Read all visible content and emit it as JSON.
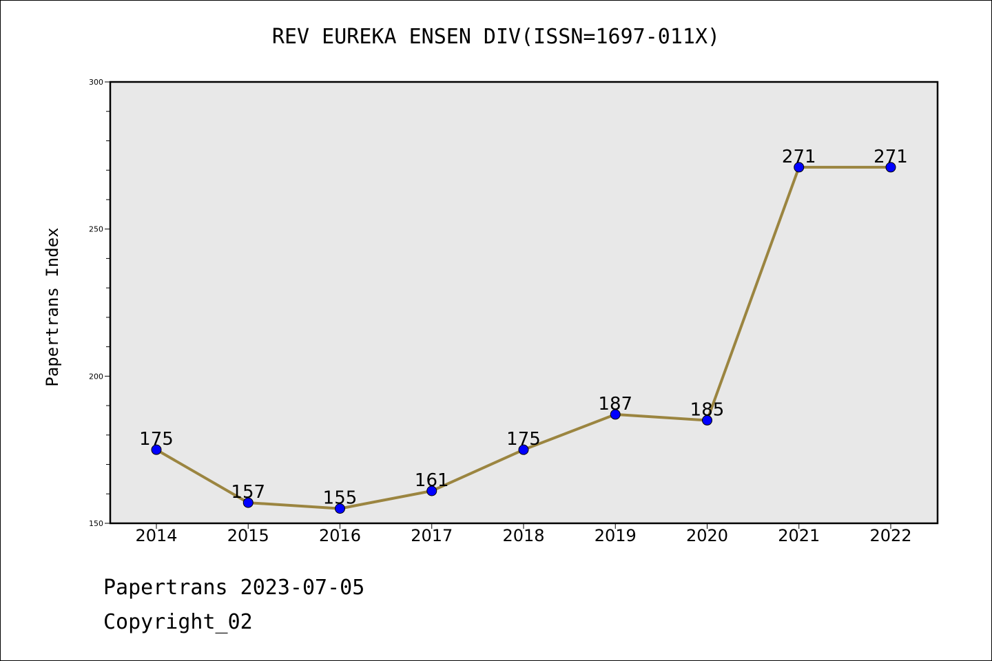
{
  "chart_data": {
    "type": "line",
    "title": "REV EUREKA ENSEN DIV(ISSN=1697-011X)",
    "ylabel": "Papertrans Index",
    "xlabel": "",
    "x": [
      "2014",
      "2015",
      "2016",
      "2017",
      "2018",
      "2019",
      "2020",
      "2021",
      "2022"
    ],
    "values": [
      175,
      157,
      155,
      161,
      175,
      187,
      185,
      271,
      271
    ],
    "ylim": [
      150,
      300
    ],
    "yticks": [
      "150",
      "200",
      "250",
      "300"
    ],
    "grid": false,
    "data_labels": true,
    "colors": {
      "line": "#9b8540",
      "marker": "#0000ff",
      "plot_bg": "#e8e8e8"
    }
  },
  "footer": {
    "line1": "Papertrans 2023-07-05",
    "line2": "Copyright_02"
  }
}
